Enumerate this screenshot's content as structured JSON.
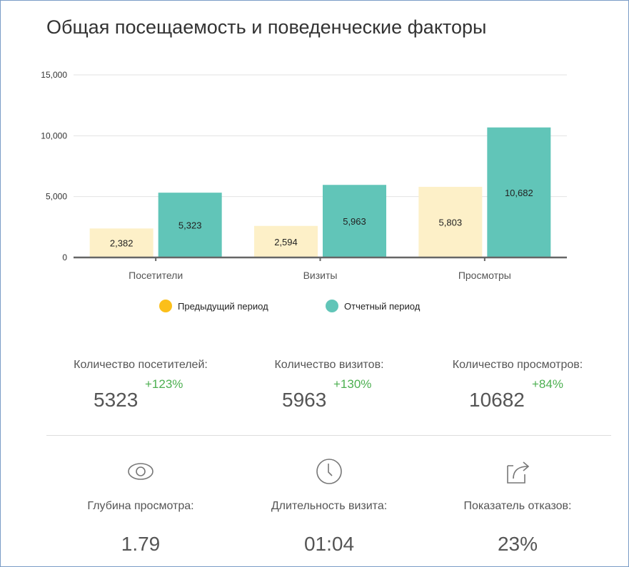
{
  "title": "Общая посещаемость и поведенческие факторы",
  "chart_data": {
    "type": "bar",
    "categories": [
      "Посетители",
      "Визиты",
      "Просмотры"
    ],
    "series": [
      {
        "name": "Предыдущий период",
        "values": [
          2382,
          2594,
          5803
        ],
        "labels": [
          "2,382",
          "2,594",
          "5,803"
        ],
        "color": "#fdf0c8",
        "legend_color": "#fbbf1a"
      },
      {
        "name": "Отчетный период",
        "values": [
          5323,
          5963,
          10682
        ],
        "labels": [
          "5,323",
          "5,963",
          "10,682"
        ],
        "color": "#61c5b8",
        "legend_color": "#61c5b8"
      }
    ],
    "yticks": [
      0,
      5000,
      10000,
      15000
    ],
    "ytick_labels": [
      "0",
      "5,000",
      "10,000",
      "15,000"
    ],
    "ylim": [
      0,
      15000
    ],
    "grid": true,
    "legend_placement": "bottom"
  },
  "stats": [
    {
      "label": "Количество посетителей:",
      "value": "5323",
      "delta": "+123%"
    },
    {
      "label": "Количество визитов:",
      "value": "5963",
      "delta": "+130%"
    },
    {
      "label": "Количество просмотров:",
      "value": "10682",
      "delta": "+84%"
    }
  ],
  "kpis": [
    {
      "icon": "eye-icon",
      "label": "Глубина просмотра:",
      "value": "1.79"
    },
    {
      "icon": "clock-icon",
      "label": "Длительность визита:",
      "value": "01:04"
    },
    {
      "icon": "share-icon",
      "label": "Показатель отказов:",
      "value": "23%"
    }
  ]
}
